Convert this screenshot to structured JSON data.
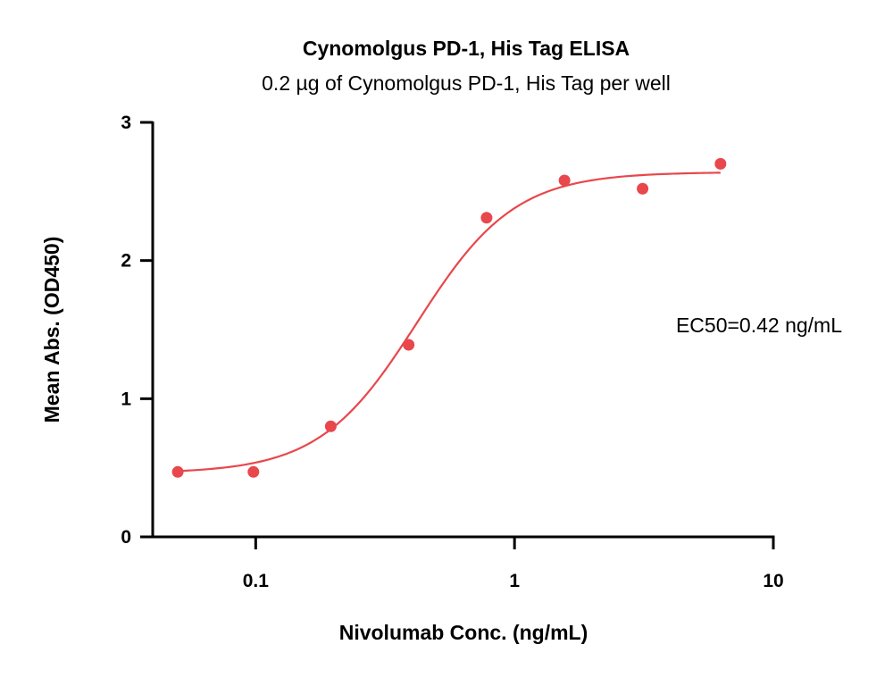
{
  "chart_data": {
    "type": "scatter",
    "title": "Cynomolgus PD-1, His Tag ELISA",
    "subtitle": "0.2 µg of Cynomolgus PD-1, His Tag per well",
    "xlabel": "Nivolumab Conc. (ng/mL)",
    "ylabel": "Mean Abs. (OD450)",
    "xscale": "log",
    "xlim": [
      0.04,
      10
    ],
    "ylim": [
      0,
      3
    ],
    "xticks": [
      0.1,
      1,
      10
    ],
    "xtick_labels": [
      "0.1",
      "1",
      "10"
    ],
    "yticks": [
      0,
      1,
      2,
      3
    ],
    "ytick_labels": [
      "0",
      "1",
      "2",
      "3"
    ],
    "grid": false,
    "color": "#e8474c",
    "series": [
      {
        "x": [
          0.05,
          0.098,
          0.195,
          0.39,
          0.78,
          1.56,
          3.125,
          6.25
        ],
        "y": [
          0.47,
          0.47,
          0.8,
          1.39,
          2.31,
          2.58,
          2.52,
          2.7
        ]
      }
    ],
    "fit": {
      "model": "4PL",
      "bottom": 0.46,
      "top": 2.64,
      "ec50": 0.42,
      "hill": 2.3
    },
    "annotation": "EC50=0.42 ng/mL"
  }
}
